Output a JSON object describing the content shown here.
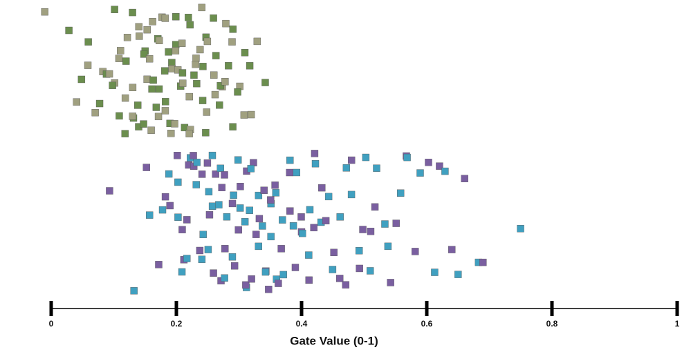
{
  "chart_data": {
    "type": "strip",
    "x_label": "Gate Value (0-1)",
    "xlim": [
      0,
      1
    ],
    "xticks": [
      0,
      0.2,
      0.4,
      0.6,
      0.8,
      1
    ],
    "palette": [
      "#6b8e4e",
      "#8a7f6a",
      "#4f6b8c",
      "#7a5fa0",
      "#5aa05a",
      "#9c8f7a",
      "#3c5a3c",
      "#a0a080",
      "#6a4fc0",
      "#c04040",
      "#40a0c0",
      "#808060",
      "#7040d0",
      "#b0a070"
    ],
    "series": [
      {
        "values": [
          0.03,
          0.04,
          0.05,
          0.06,
          0.06,
          0.07,
          0.08,
          0.08,
          0.09,
          0.09,
          0.1,
          0.1,
          0.1,
          0.11,
          0.11,
          0.11,
          0.12,
          0.12,
          0.12,
          0.12,
          0.13,
          0.13,
          0.13,
          0.13,
          0.14,
          0.14,
          0.14,
          0.14,
          0.15,
          0.15,
          0.15,
          0.15,
          0.15,
          0.16,
          0.16,
          0.16,
          0.16,
          0.16,
          0.17,
          0.17,
          0.17,
          0.17,
          0.17,
          0.18,
          0.18,
          0.18,
          0.18,
          0.18,
          0.19,
          0.19,
          0.19,
          0.19,
          0.19,
          0.2,
          0.2,
          0.2,
          0.2,
          0.2,
          0.21,
          0.21,
          0.21,
          0.21,
          0.21,
          0.22,
          0.22,
          0.22,
          0.22,
          0.22,
          0.23,
          0.23,
          0.23,
          0.23,
          0.24,
          0.24,
          0.24,
          0.24,
          0.25,
          0.25,
          0.25,
          0.25,
          0.26,
          0.26,
          0.26,
          0.26,
          0.27,
          0.27,
          0.27,
          0.28,
          0.28,
          0.28,
          0.29,
          0.29,
          0.29,
          0.3,
          0.3,
          0.31,
          0.31,
          0.32,
          0.32,
          0.33,
          0.34,
          -0.01
        ]
      },
      {
        "values": [
          0.09,
          0.13,
          0.15,
          0.16,
          0.17,
          0.18,
          0.18,
          0.19,
          0.19,
          0.2,
          0.2,
          0.2,
          0.21,
          0.21,
          0.21,
          0.22,
          0.22,
          0.22,
          0.22,
          0.23,
          0.23,
          0.23,
          0.23,
          0.24,
          0.24,
          0.24,
          0.24,
          0.25,
          0.25,
          0.25,
          0.25,
          0.26,
          0.26,
          0.26,
          0.26,
          0.27,
          0.27,
          0.27,
          0.27,
          0.28,
          0.28,
          0.28,
          0.28,
          0.29,
          0.29,
          0.29,
          0.29,
          0.3,
          0.3,
          0.3,
          0.3,
          0.31,
          0.31,
          0.31,
          0.31,
          0.32,
          0.32,
          0.32,
          0.32,
          0.33,
          0.33,
          0.33,
          0.33,
          0.34,
          0.34,
          0.34,
          0.34,
          0.35,
          0.35,
          0.35,
          0.35,
          0.36,
          0.36,
          0.36,
          0.36,
          0.37,
          0.37,
          0.37,
          0.38,
          0.38,
          0.38,
          0.39,
          0.39,
          0.39,
          0.4,
          0.4,
          0.4,
          0.41,
          0.41,
          0.41,
          0.42,
          0.42,
          0.42,
          0.43,
          0.43,
          0.44,
          0.44,
          0.45,
          0.45,
          0.46,
          0.46,
          0.47,
          0.47,
          0.48,
          0.48,
          0.49,
          0.49,
          0.5,
          0.5,
          0.51,
          0.51,
          0.52,
          0.52,
          0.53,
          0.54,
          0.54,
          0.55,
          0.56,
          0.57,
          0.57,
          0.58,
          0.59,
          0.6,
          0.61,
          0.62,
          0.63,
          0.64,
          0.65,
          0.66,
          0.68,
          0.69,
          0.75
        ]
      }
    ]
  }
}
